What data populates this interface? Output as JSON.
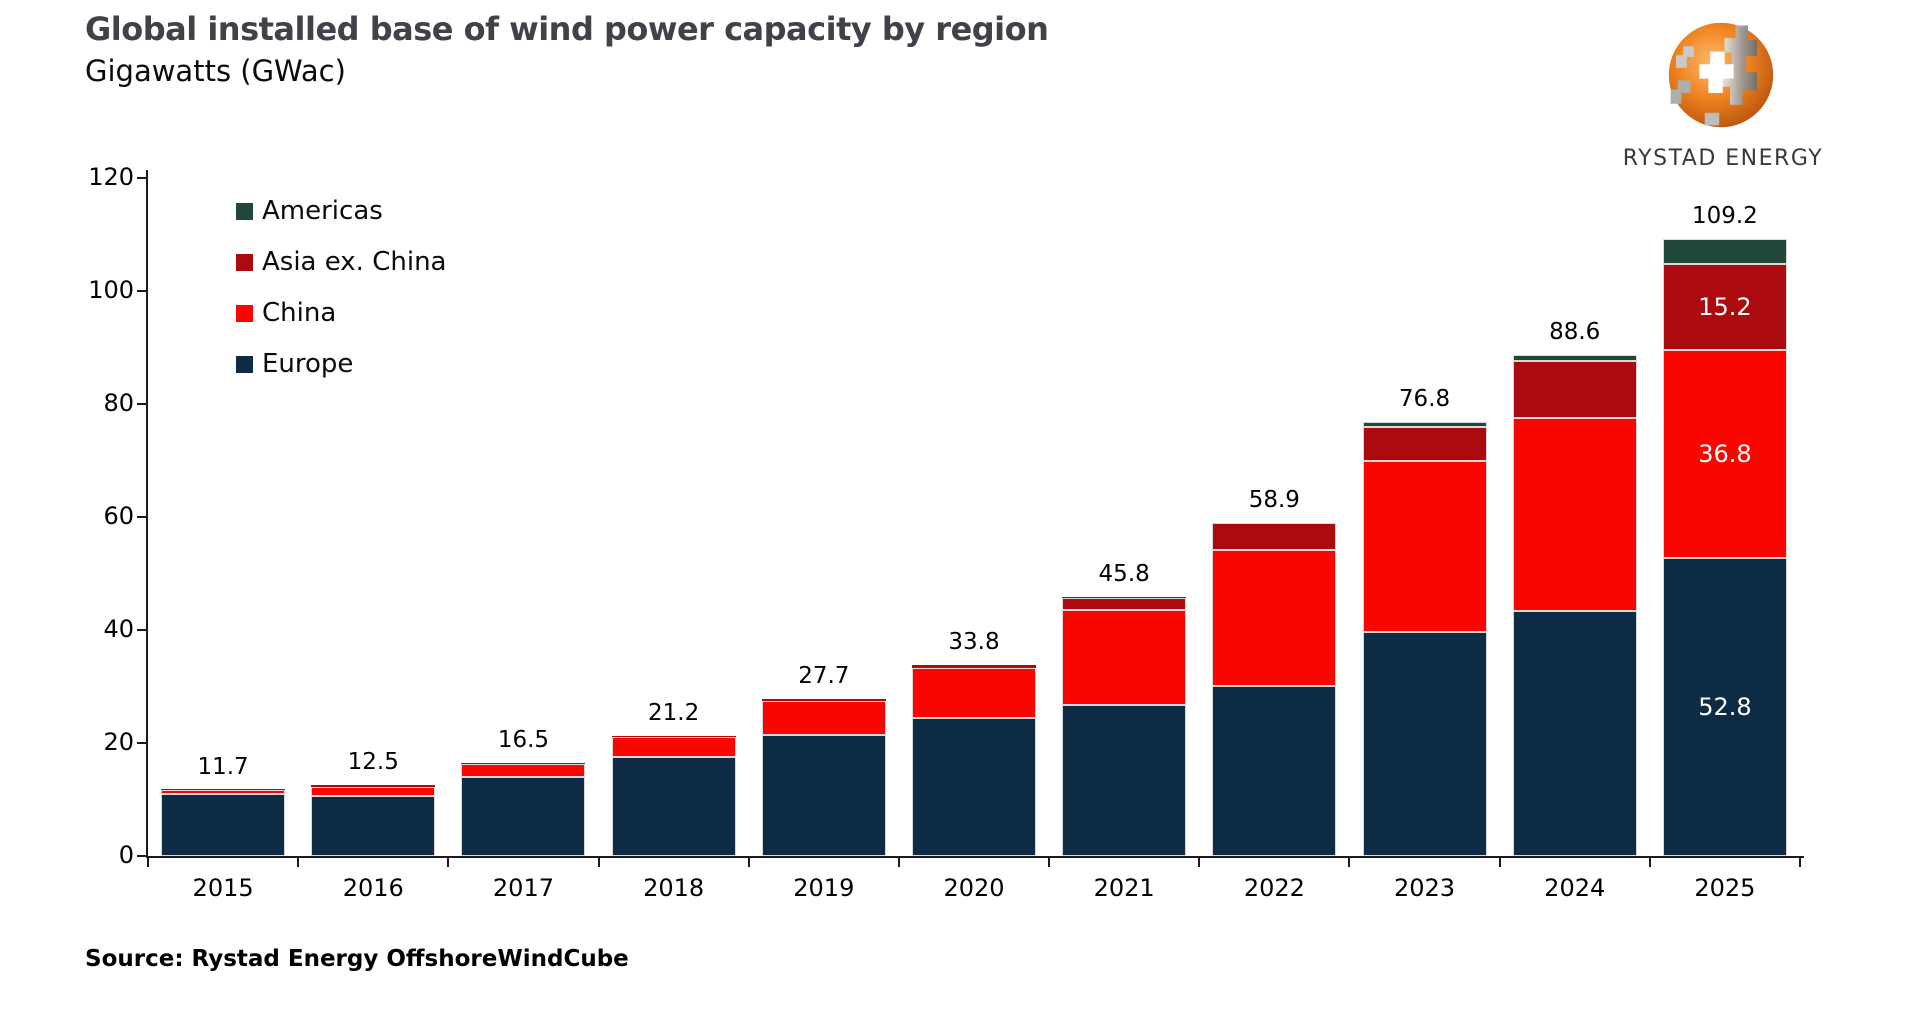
{
  "header": {
    "title": "Global installed base of wind power capacity by region",
    "subtitle": "Gigawatts (GWac)"
  },
  "logo": {
    "brand": "RYSTAD ENERGY",
    "orange": "#ee7523",
    "gray": "#9c9c9c"
  },
  "source": {
    "text": "Source: Rystad Energy OffshoreWindCube"
  },
  "chart_data": {
    "type": "bar",
    "stacked": true,
    "title": "Global installed base of wind power capacity by region",
    "subtitle": "Gigawatts (GWac)",
    "xlabel": "",
    "ylabel": "Gigawatts (GWac)",
    "ylim": [
      0,
      120
    ],
    "yticks": [
      0,
      20,
      40,
      60,
      80,
      100,
      120
    ],
    "grid": false,
    "legend_position": "top-left-inside",
    "legend_order": [
      "Americas",
      "Asia ex. China",
      "China",
      "Europe"
    ],
    "categories": [
      "2015",
      "2016",
      "2017",
      "2018",
      "2019",
      "2020",
      "2021",
      "2022",
      "2023",
      "2024",
      "2025"
    ],
    "series": [
      {
        "name": "Europe",
        "color": "#0d2b44",
        "values": [
          10.9,
          10.7,
          14.0,
          17.5,
          21.5,
          24.4,
          26.7,
          30.1,
          39.7,
          43.4,
          52.8
        ]
      },
      {
        "name": "China",
        "color": "#f90600",
        "values": [
          0.7,
          1.6,
          2.3,
          3.5,
          5.9,
          8.9,
          16.9,
          24.0,
          30.2,
          34.2,
          36.8
        ]
      },
      {
        "name": "Asia ex. China",
        "color": "#ab0a0e",
        "values": [
          0.1,
          0.2,
          0.2,
          0.2,
          0.3,
          0.4,
          2.1,
          4.8,
          6.1,
          10.0,
          15.2
        ]
      },
      {
        "name": "Americas",
        "color": "#1f4838",
        "values": [
          0.0,
          0.0,
          0.0,
          0.0,
          0.0,
          0.1,
          0.1,
          0.0,
          0.8,
          1.0,
          4.4
        ]
      }
    ],
    "totals": [
      11.7,
      12.5,
      16.5,
      21.2,
      27.7,
      33.8,
      45.8,
      58.9,
      76.8,
      88.6,
      109.2
    ],
    "segment_labels": [
      {
        "category": "2025",
        "series": "Asia ex. China",
        "value": 15.2
      },
      {
        "category": "2025",
        "series": "China",
        "value": 36.8
      },
      {
        "category": "2025",
        "series": "Europe",
        "value": 52.8
      }
    ],
    "label_color_inside": "#ffffff"
  }
}
